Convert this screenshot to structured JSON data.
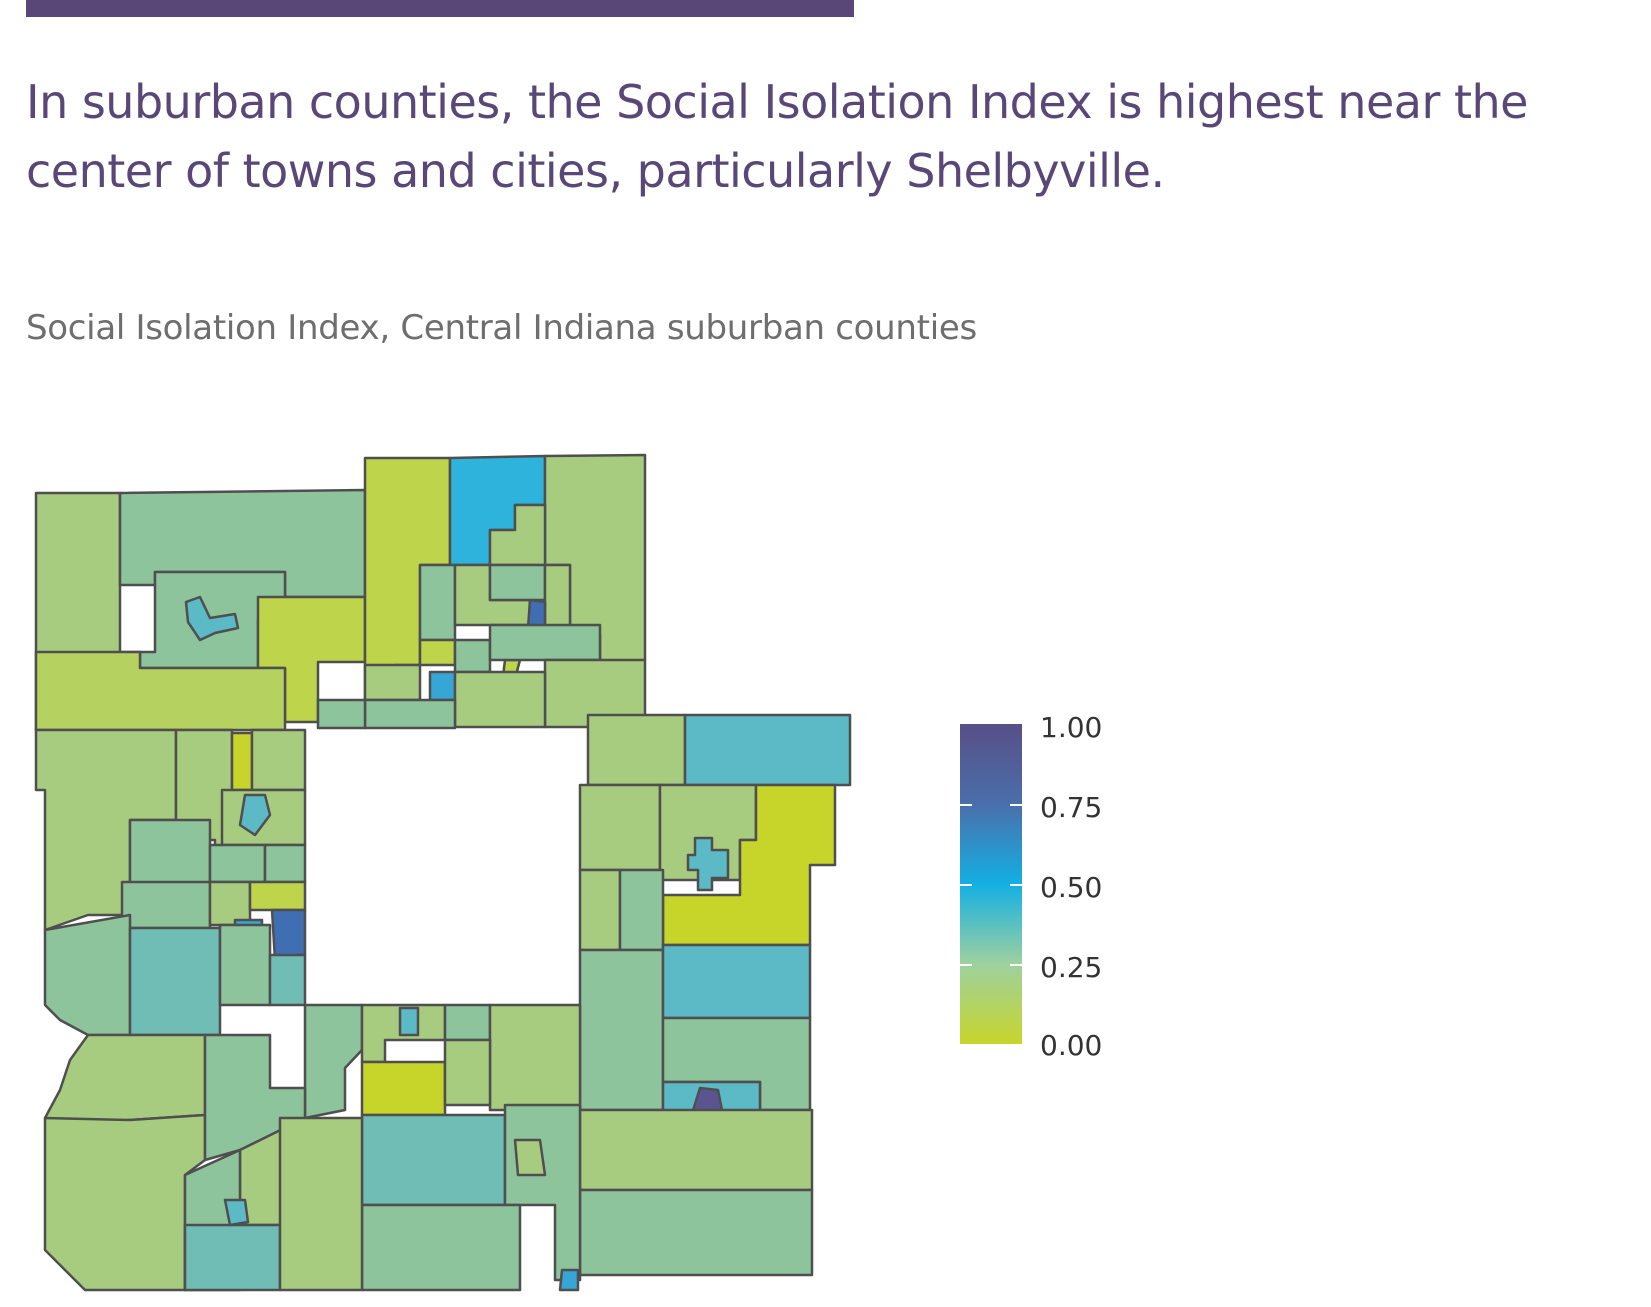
{
  "headline": "In suburban counties, the Social Isolation Index is highest near the center of towns and cities, particularly Shelbyville.",
  "subtitle": "Social Isolation Index, Central Indiana suburban counties",
  "legend": {
    "labels": [
      "1.00",
      "0.75",
      "0.50",
      "0.25",
      "0.00"
    ],
    "colors": {
      "1.00": "#584f87",
      "0.75": "#4a6fab",
      "0.50": "#13b0e3",
      "0.25": "#9ed19f",
      "0.00": "#c7d52a"
    }
  },
  "colors": {
    "accent": "#594877",
    "yellow_green": "#c7d52a",
    "light_green": "#a8cc7f",
    "mid_green": "#8dc49b",
    "teal": "#6fbdb4",
    "cyan": "#5cb9c6",
    "blue": "#35a6d6",
    "dark_blue": "#3f6fb2",
    "purple": "#5a5590"
  }
}
